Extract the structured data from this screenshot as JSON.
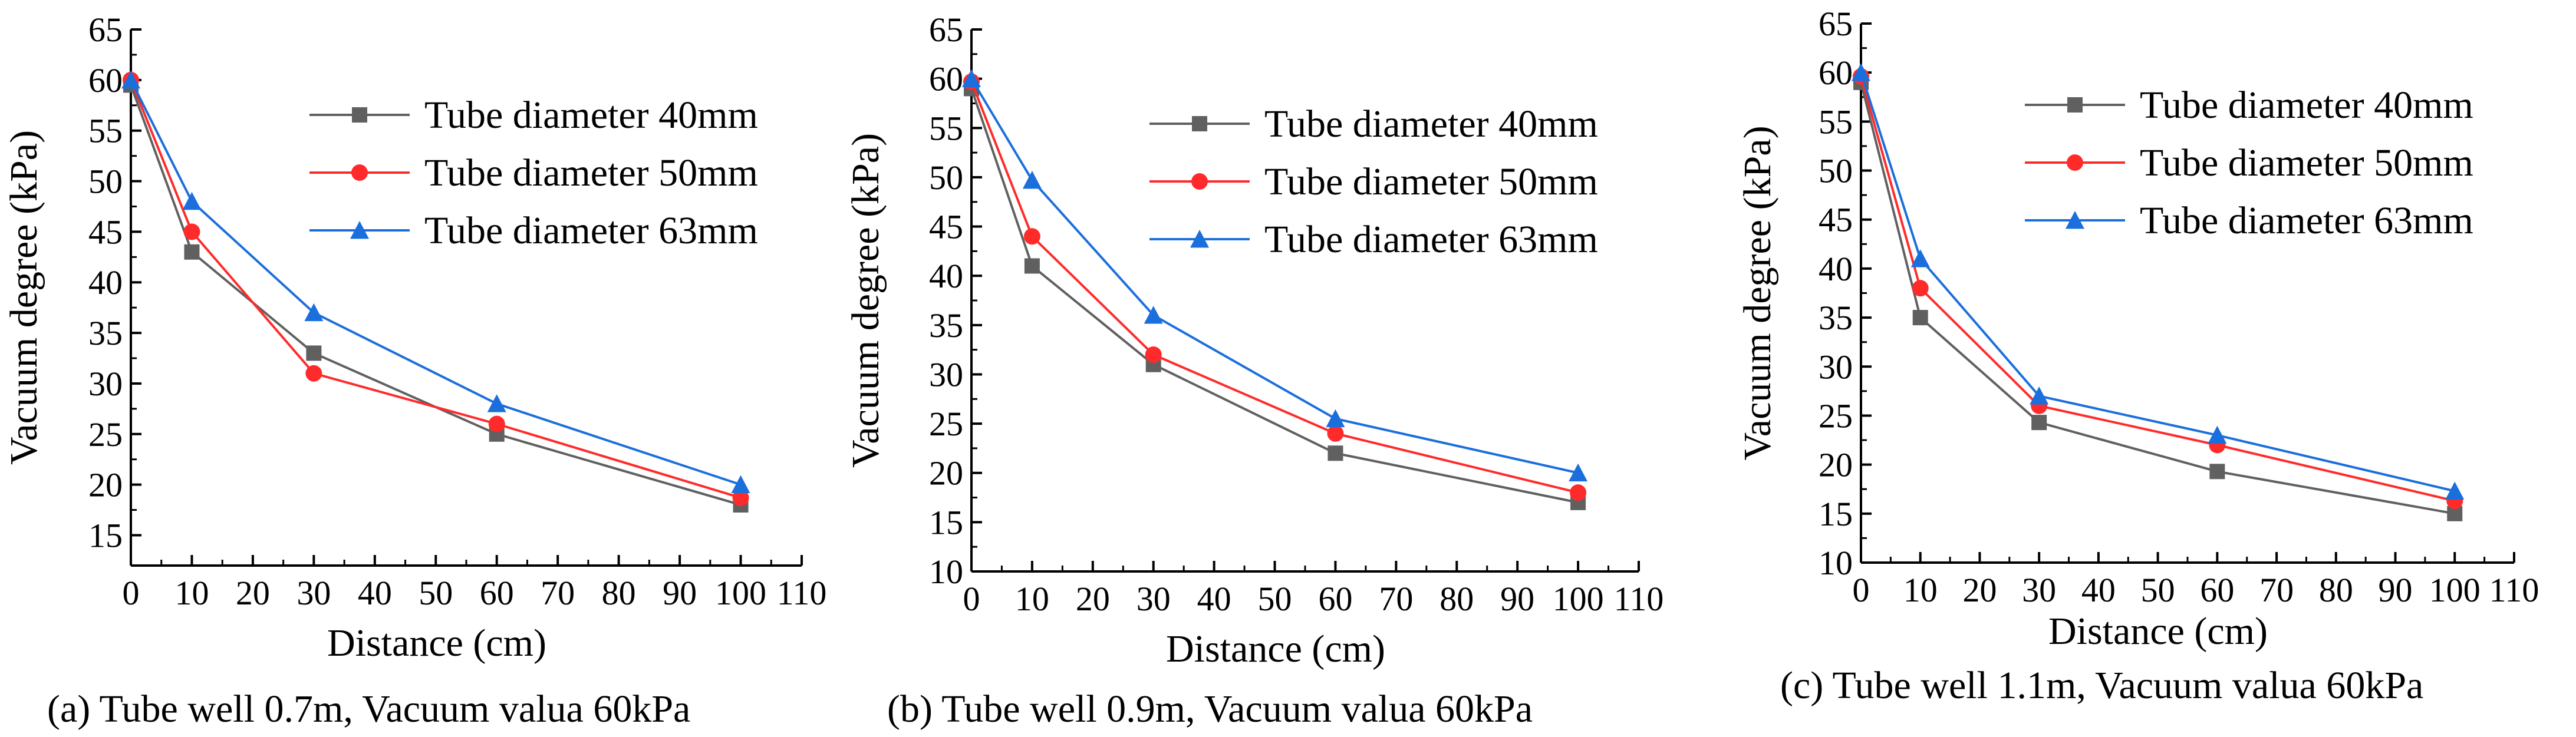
{
  "colors": {
    "s40": "#606060",
    "s50": "#ff2b2b",
    "s63": "#1b6fdc",
    "axis": "#000000"
  },
  "chart_data": [
    {
      "type": "line",
      "caption": "(a)  Tube well 0.7m, Vacuum valua 60kPa",
      "xlabel": "Distance (cm)",
      "ylabel": "Vacuum degree (kPa)",
      "xlim": [
        0,
        110
      ],
      "ylim": [
        12,
        65
      ],
      "xticks": [
        0,
        10,
        20,
        30,
        40,
        50,
        60,
        70,
        80,
        90,
        100,
        110
      ],
      "yticks": [
        15,
        20,
        25,
        30,
        35,
        40,
        45,
        50,
        55,
        60,
        65
      ],
      "legend_position": "top-right",
      "series": [
        {
          "name": "Tube diameter 40mm",
          "marker": "square",
          "x": [
            0,
            10,
            30,
            60,
            100
          ],
          "values": [
            59.5,
            43,
            33,
            25,
            18
          ]
        },
        {
          "name": "Tube diameter 50mm",
          "marker": "circle",
          "x": [
            0,
            10,
            30,
            60,
            100
          ],
          "values": [
            60,
            45,
            31,
            26,
            18.7
          ]
        },
        {
          "name": "Tube diameter 63mm",
          "marker": "triangle",
          "x": [
            0,
            10,
            30,
            60,
            100
          ],
          "values": [
            60,
            48,
            37,
            28,
            20
          ]
        }
      ]
    },
    {
      "type": "line",
      "caption": "(b)  Tube well 0.9m, Vacuum valua 60kPa",
      "xlabel": "Distance (cm)",
      "ylabel": "Vacuum degree (kPa)",
      "xlim": [
        0,
        110
      ],
      "ylim": [
        10,
        65
      ],
      "xticks": [
        0,
        10,
        20,
        30,
        40,
        50,
        60,
        70,
        80,
        90,
        100,
        110
      ],
      "yticks": [
        10,
        15,
        20,
        25,
        30,
        35,
        40,
        45,
        50,
        55,
        60,
        65
      ],
      "legend_position": "top-right",
      "series": [
        {
          "name": "Tube diameter 40mm",
          "marker": "square",
          "x": [
            0,
            10,
            30,
            60,
            100
          ],
          "values": [
            59,
            41,
            31,
            22,
            17
          ]
        },
        {
          "name": "Tube diameter 50mm",
          "marker": "circle",
          "x": [
            0,
            10,
            30,
            60,
            100
          ],
          "values": [
            59.7,
            44,
            32,
            24,
            18
          ]
        },
        {
          "name": "Tube diameter 63mm",
          "marker": "triangle",
          "x": [
            0,
            10,
            30,
            60,
            100
          ],
          "values": [
            60,
            49.7,
            36,
            25.5,
            20
          ]
        }
      ]
    },
    {
      "type": "line",
      "caption": "(c)  Tube well 1.1m, Vacuum valua 60kPa",
      "xlabel": "Distance (cm)",
      "ylabel": "Vacuum degree (kPa)",
      "xlim": [
        0,
        110
      ],
      "ylim": [
        10,
        65
      ],
      "xticks": [
        0,
        10,
        20,
        30,
        40,
        50,
        60,
        70,
        80,
        90,
        100,
        110
      ],
      "yticks": [
        10,
        15,
        20,
        25,
        30,
        35,
        40,
        45,
        50,
        55,
        60,
        65
      ],
      "legend_position": "top-right",
      "series": [
        {
          "name": "Tube diameter 40mm",
          "marker": "square",
          "x": [
            0,
            10,
            30,
            60,
            100
          ],
          "values": [
            59,
            35,
            24.3,
            19.3,
            15
          ]
        },
        {
          "name": "Tube diameter 50mm",
          "marker": "circle",
          "x": [
            0,
            10,
            30,
            60,
            100
          ],
          "values": [
            59.6,
            38,
            26,
            22,
            16.3
          ]
        },
        {
          "name": "Tube diameter 63mm",
          "marker": "triangle",
          "x": [
            0,
            10,
            30,
            60,
            100
          ],
          "values": [
            60,
            41,
            27,
            23,
            17.3
          ]
        }
      ]
    }
  ]
}
